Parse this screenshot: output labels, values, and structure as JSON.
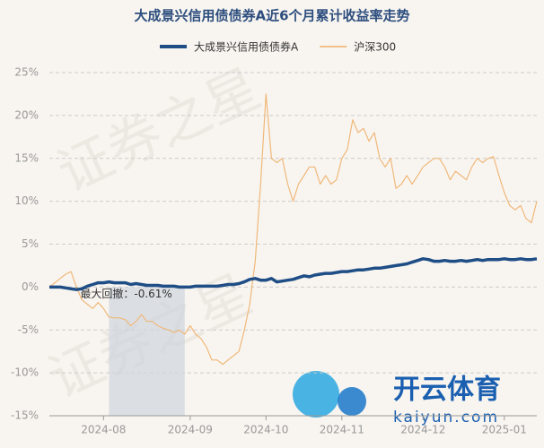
{
  "chart_data": {
    "type": "line",
    "title": "大成景兴信用债债券A近6个月累计收益率走势",
    "watermark": "证券之星",
    "logo": {
      "name": "开云体育",
      "site": "kaiyun.com"
    },
    "categories": [
      null,
      null,
      null,
      null,
      null,
      null,
      null,
      null,
      null,
      null,
      "2024-08",
      null,
      null,
      null,
      null,
      null,
      null,
      null,
      null,
      null,
      null,
      null,
      null,
      null,
      null,
      null,
      "2024-09",
      null,
      null,
      null,
      null,
      null,
      null,
      null,
      null,
      null,
      null,
      null,
      null,
      null,
      "2024-10",
      null,
      null,
      null,
      null,
      null,
      null,
      null,
      null,
      null,
      null,
      null,
      null,
      null,
      "2024-11",
      null,
      null,
      null,
      null,
      null,
      null,
      null,
      null,
      null,
      null,
      null,
      null,
      null,
      null,
      "2024-12",
      null,
      null,
      null,
      null,
      null,
      null,
      null,
      null,
      null,
      null,
      null,
      null,
      null,
      null,
      "2025-01",
      null,
      null,
      null,
      null,
      null,
      null
    ],
    "series": [
      {
        "name": "大成景兴信用债债券A",
        "color": "#1f4e86",
        "width": 3.5,
        "values": [
          0,
          0,
          0,
          -0.1,
          -0.2,
          -0.3,
          -0.2,
          0.1,
          0.3,
          0.5,
          0.5,
          0.6,
          0.5,
          0.5,
          0.5,
          0.3,
          0.4,
          0.3,
          0.2,
          0.2,
          0.2,
          0.1,
          0.1,
          0.1,
          0,
          0,
          0,
          0.1,
          0.1,
          0.1,
          0.1,
          0.1,
          0.2,
          0.3,
          0.3,
          0.4,
          0.6,
          0.9,
          1,
          0.8,
          0.8,
          1,
          0.6,
          0.7,
          0.8,
          0.9,
          1.1,
          1.3,
          1.2,
          1.4,
          1.5,
          1.6,
          1.6,
          1.7,
          1.8,
          1.8,
          1.9,
          2,
          2,
          2.1,
          2.2,
          2.2,
          2.3,
          2.4,
          2.5,
          2.6,
          2.7,
          2.9,
          3.1,
          3.3,
          3.2,
          3,
          3,
          3.1,
          3,
          3,
          3.1,
          3,
          3.1,
          3.2,
          3.1,
          3.2,
          3.2,
          3.2,
          3.3,
          3.2,
          3.2,
          3.3,
          3.2,
          3.2,
          3.3
        ]
      },
      {
        "name": "沪深300",
        "color": "#f0b87a",
        "width": 1.2,
        "values": [
          0,
          0.5,
          1,
          1.5,
          1.8,
          0,
          -1.5,
          -2,
          -2.5,
          -1.8,
          -2.5,
          -3.5,
          -3.6,
          -3.6,
          -3.8,
          -4.5,
          -4,
          -3.2,
          -4,
          -4,
          -4.5,
          -4.8,
          -5,
          -5.3,
          -5,
          -5.5,
          -4.5,
          -5.5,
          -6,
          -7,
          -8.5,
          -8.5,
          -9,
          -8.5,
          -8,
          -7.5,
          -5,
          -2,
          3,
          12,
          22.5,
          15,
          14.5,
          15,
          12,
          10,
          12,
          13,
          14,
          14,
          12,
          13,
          12,
          12.5,
          15,
          16,
          19.5,
          18,
          18.5,
          17,
          18,
          15,
          14,
          15,
          11.5,
          12,
          13,
          12,
          13,
          14,
          14.5,
          15,
          15,
          14,
          12.5,
          13.5,
          13,
          12.5,
          14,
          15,
          14.5,
          15,
          15.2,
          13,
          11,
          9.5,
          9,
          9.5,
          8,
          7.5,
          10
        ]
      }
    ],
    "drawdown": {
      "label": "最大回撤：-0.61%",
      "range": [
        11,
        25
      ]
    },
    "ylim": [
      -15,
      25
    ],
    "yticks": [
      {
        "value": -15,
        "label": "-15%"
      },
      {
        "value": -10,
        "label": "-10%"
      },
      {
        "value": -5,
        "label": "-5%"
      },
      {
        "value": 0,
        "label": "0%"
      },
      {
        "value": 5,
        "label": "5%"
      },
      {
        "value": 10,
        "label": "10%"
      },
      {
        "value": 15,
        "label": "15%"
      },
      {
        "value": 20,
        "label": "20%"
      },
      {
        "value": 25,
        "label": "25%"
      }
    ],
    "grid": true
  }
}
